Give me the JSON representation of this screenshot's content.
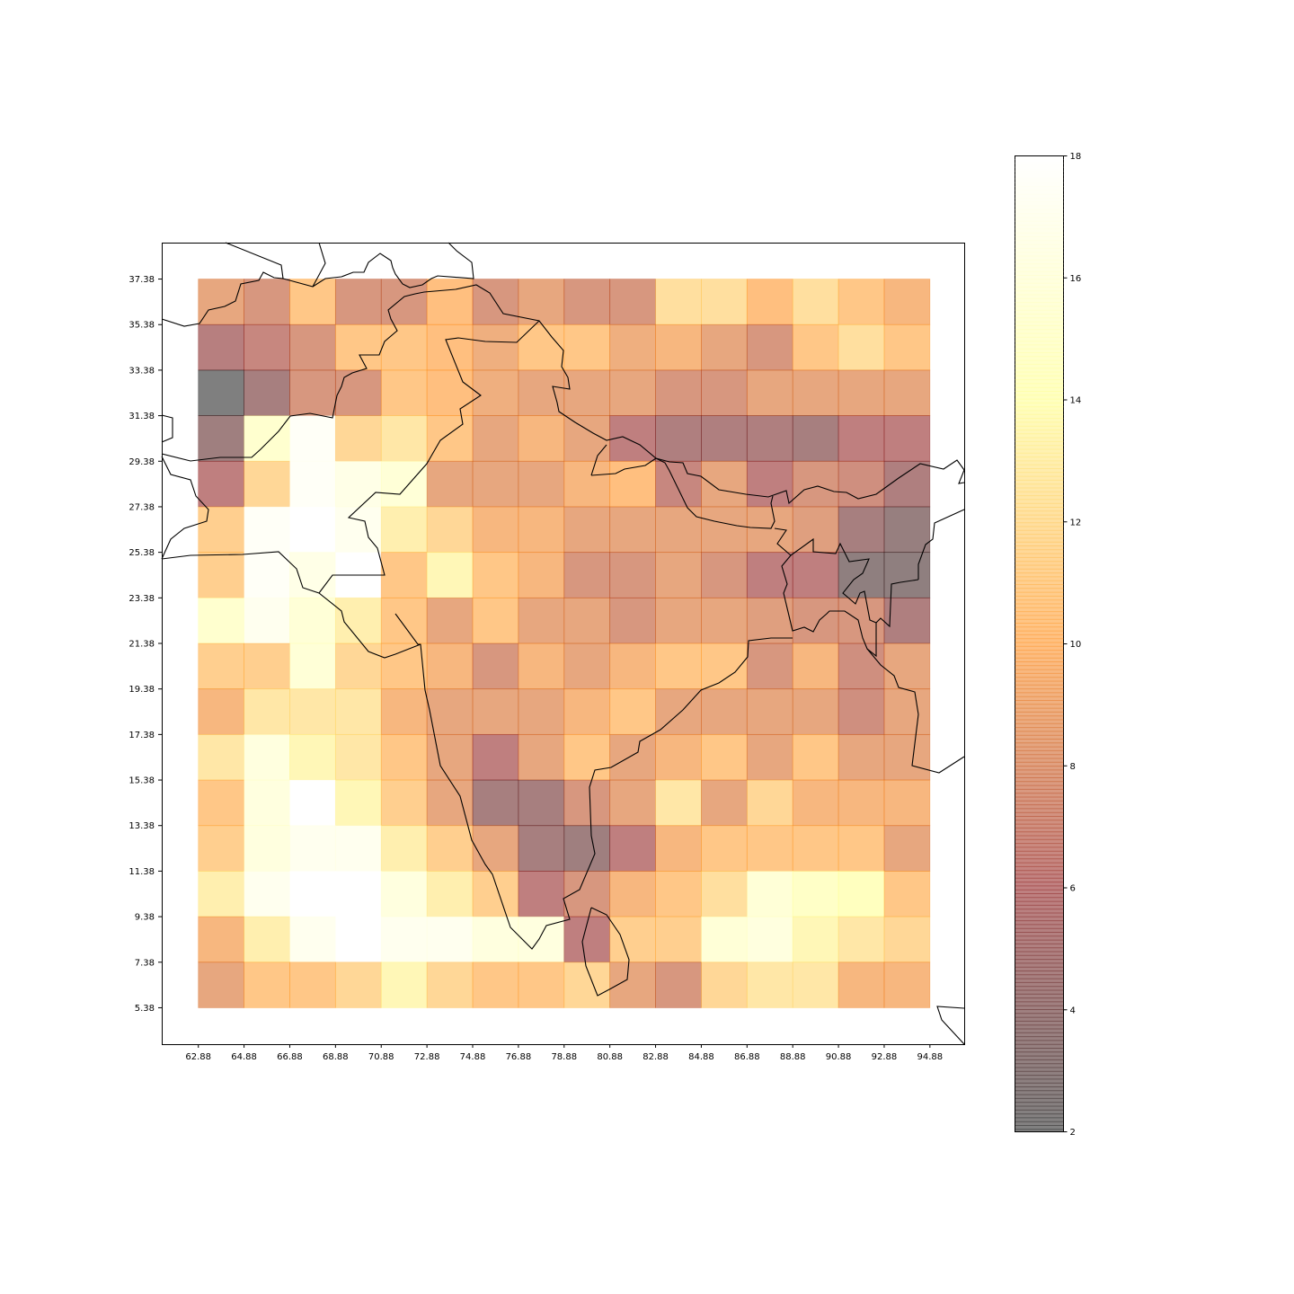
{
  "chart_data": {
    "type": "heatmap",
    "title": "",
    "xlabel": "",
    "ylabel": "",
    "x_ticks": [
      "62.88",
      "64.88",
      "66.88",
      "68.88",
      "70.88",
      "72.88",
      "74.88",
      "76.88",
      "78.88",
      "80.88",
      "82.88",
      "84.88",
      "86.88",
      "88.88",
      "90.88",
      "92.88",
      "94.88"
    ],
    "y_ticks": [
      "37.38",
      "35.38",
      "33.38",
      "31.38",
      "29.38",
      "27.38",
      "25.38",
      "23.38",
      "21.38",
      "19.38",
      "17.38",
      "15.38",
      "13.38",
      "11.38",
      "9.38",
      "7.38",
      "5.38"
    ],
    "xlim": [
      61.28,
      96.38
    ],
    "ylim": [
      3.78,
      38.98
    ],
    "grid": false,
    "colormap": "afmhot",
    "opacity": 0.5,
    "colorbar": {
      "min": 2,
      "max": 18,
      "ticks": [
        "2",
        "4",
        "6",
        "8",
        "10",
        "12",
        "14",
        "16",
        "18"
      ]
    },
    "cells_lon_start": [
      62.88,
      64.88,
      66.88,
      68.88,
      70.88,
      72.88,
      74.88,
      76.88,
      78.88,
      80.88,
      82.88,
      84.88,
      86.88,
      88.88,
      90.88,
      92.88
    ],
    "cells_lat_top": [
      37.38,
      35.38,
      33.38,
      31.38,
      29.38,
      27.38,
      25.38,
      23.38,
      21.38,
      19.38,
      17.38,
      15.38,
      13.38,
      11.38,
      9.38,
      7.38
    ],
    "values": [
      [
        8.5,
        7.5,
        10.5,
        7.5,
        7.5,
        10.0,
        7.5,
        8.5,
        7.5,
        7.5,
        12.0,
        12.0,
        10.0,
        12.0,
        10.5,
        9.5
      ],
      [
        5.5,
        6.5,
        7.5,
        10.5,
        10.5,
        10.0,
        9.0,
        10.5,
        10.5,
        9.0,
        9.5,
        8.5,
        7.5,
        10.5,
        12.0,
        10.5
      ],
      [
        2.0,
        4.5,
        7.5,
        7.5,
        10.5,
        10.0,
        9.0,
        8.5,
        8.5,
        8.5,
        7.5,
        7.5,
        8.5,
        8.5,
        8.5,
        8.5
      ],
      [
        4.0,
        15.0,
        17.5,
        11.5,
        12.5,
        10.5,
        8.5,
        9.5,
        8.5,
        6.0,
        5.0,
        5.0,
        5.0,
        4.5,
        6.0,
        6.0
      ],
      [
        6.0,
        11.5,
        17.5,
        16.5,
        15.5,
        8.5,
        8.5,
        8.5,
        9.5,
        10.0,
        6.5,
        8.5,
        6.0,
        7.5,
        7.0,
        5.0
      ],
      [
        11.0,
        17.5,
        18.0,
        17.0,
        13.0,
        11.5,
        9.5,
        9.5,
        8.5,
        8.5,
        8.5,
        8.5,
        8.5,
        8.0,
        4.5,
        3.5
      ],
      [
        11.0,
        17.5,
        16.5,
        18.0,
        10.5,
        13.5,
        10.5,
        9.5,
        7.5,
        7.5,
        8.5,
        7.5,
        6.0,
        6.0,
        3.0,
        3.0
      ],
      [
        15.0,
        17.0,
        15.5,
        13.0,
        10.5,
        8.5,
        10.5,
        8.5,
        8.5,
        7.5,
        8.5,
        8.5,
        8.0,
        7.5,
        7.5,
        5.0
      ],
      [
        11.0,
        11.0,
        15.5,
        11.5,
        10.5,
        9.5,
        7.5,
        9.5,
        8.5,
        9.5,
        10.5,
        10.5,
        7.5,
        9.5,
        7.0,
        8.5
      ],
      [
        9.5,
        12.5,
        12.5,
        12.5,
        9.5,
        8.5,
        8.5,
        8.5,
        9.5,
        10.5,
        8.5,
        8.5,
        8.5,
        8.5,
        7.0,
        8.5
      ],
      [
        12.5,
        16.0,
        13.5,
        12.5,
        10.5,
        8.5,
        6.0,
        8.5,
        10.5,
        8.5,
        9.5,
        10.5,
        8.5,
        10.5,
        8.5,
        8.5
      ],
      [
        10.5,
        16.0,
        18.0,
        13.5,
        11.0,
        8.5,
        4.5,
        4.5,
        7.5,
        8.5,
        12.5,
        8.5,
        11.5,
        9.5,
        9.5,
        9.5
      ],
      [
        11.0,
        16.0,
        17.0,
        17.0,
        13.0,
        11.0,
        8.5,
        4.5,
        4.0,
        6.0,
        9.5,
        10.5,
        10.5,
        10.5,
        10.5,
        8.5
      ],
      [
        13.0,
        17.0,
        18.0,
        18.0,
        16.0,
        13.0,
        11.0,
        6.0,
        7.5,
        9.5,
        10.5,
        12.0,
        15.5,
        14.5,
        14.0,
        10.5
      ],
      [
        9.5,
        13.0,
        17.0,
        18.0,
        17.0,
        17.0,
        16.0,
        16.0,
        6.0,
        11.0,
        11.0,
        15.5,
        16.0,
        13.5,
        12.5,
        11.5
      ],
      [
        8.5,
        10.5,
        10.5,
        11.5,
        13.5,
        11.5,
        10.5,
        10.5,
        11.5,
        8.5,
        7.5,
        11.5,
        12.5,
        12.5,
        9.5,
        9.5
      ]
    ]
  }
}
